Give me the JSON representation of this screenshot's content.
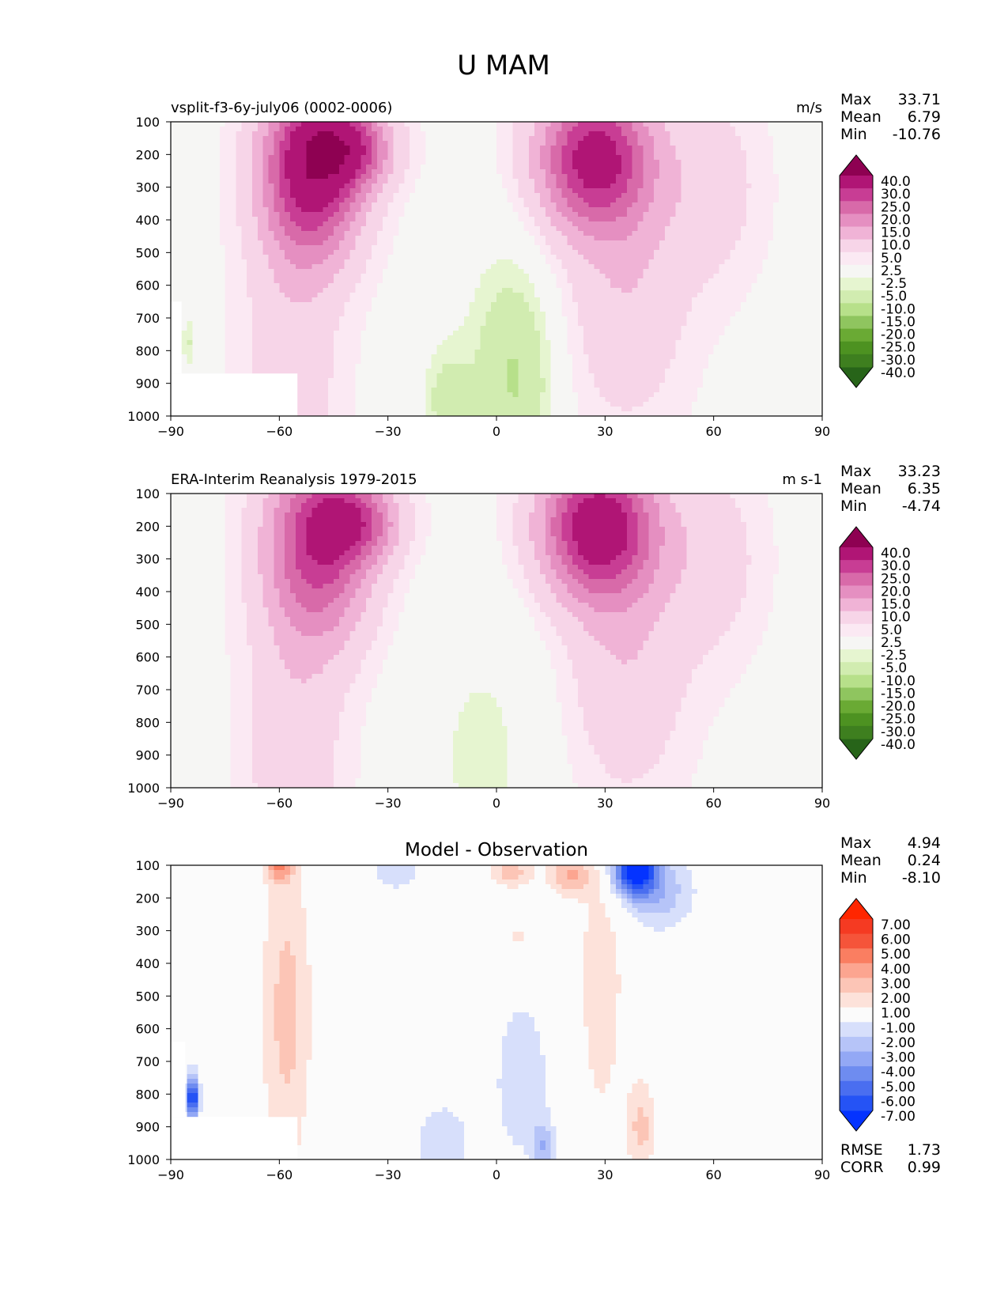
{
  "figure": {
    "title": "U MAM"
  },
  "colors": {
    "top_levels": [
      -40,
      -30,
      -25,
      -20,
      -15,
      -10,
      -5,
      -2.5,
      2.5,
      5,
      10,
      15,
      20,
      25,
      30,
      40
    ],
    "top_colorbar": [
      "#276419",
      "#3e7f1f",
      "#4d9221",
      "#6aaa34",
      "#8fc55f",
      "#b7e08a",
      "#d1ecb0",
      "#e6f5d0",
      "#f6f6f4",
      "#fbe9f3",
      "#f7d5e8",
      "#f0b3d6",
      "#e58fc1",
      "#d86aa9",
      "#c83d94",
      "#b01575",
      "#8e0152"
    ],
    "diff_levels": [
      -7,
      -6,
      -5,
      -4,
      -3,
      -2,
      -1,
      1,
      2,
      3,
      4,
      5,
      6,
      7
    ],
    "diff_colorbar": [
      "#0433ff",
      "#2553f5",
      "#4a6ef0",
      "#6e8cf0",
      "#93a8f5",
      "#b6c4f8",
      "#d7dffb",
      "#fbfbfb",
      "#fde2da",
      "#fcc5b6",
      "#fca590",
      "#fa7e61",
      "#f5543a",
      "#f53a22",
      "#ff2600"
    ]
  },
  "chart_data": [
    {
      "type": "heatmap",
      "subtitle_left": "vsplit-f3-6y-july06 (0002-0006)",
      "subtitle_right": "m/s",
      "stats": [
        {
          "label": "Max",
          "value": "33.71"
        },
        {
          "label": "Mean",
          "value": "6.79"
        },
        {
          "label": "Min",
          "value": "-10.76"
        }
      ],
      "x_ticks": [
        "−90",
        "−60",
        "−30",
        "0",
        "30",
        "60",
        "90"
      ],
      "y_ticks": [
        "100",
        "200",
        "300",
        "400",
        "500",
        "600",
        "700",
        "800",
        "900",
        "1000"
      ],
      "xlim": [
        -90,
        90
      ],
      "ylim": [
        1000,
        100
      ],
      "colorbar_labels": [
        "-40.0",
        "-30.0",
        "-25.0",
        "-20.0",
        "-15.0",
        "-10.0",
        "-5.0",
        "-2.5",
        "2.5",
        "5.0",
        "10.0",
        "15.0",
        "20.0",
        "25.0",
        "30.0",
        "40.0"
      ],
      "features": [
        {
          "lat": -51,
          "p": 240,
          "peak": 33.7,
          "wlat": 14,
          "wp": 280
        },
        {
          "lat": -40,
          "p": 180,
          "peak": 19,
          "wlat": 12,
          "wp": 120
        },
        {
          "lat": -57,
          "p": 900,
          "peak": 7,
          "wlat": 14,
          "wp": 500
        },
        {
          "lat": 27,
          "p": 210,
          "peak": 31,
          "wlat": 16,
          "wp": 220
        },
        {
          "lat": 36,
          "p": 620,
          "peak": 8,
          "wlat": 17,
          "wp": 420
        },
        {
          "lat": 60,
          "p": 300,
          "peak": 6,
          "wlat": 14,
          "wp": 300
        },
        {
          "lat": 6,
          "p": 900,
          "peak": -8.5,
          "wlat": 10,
          "wp": 320
        },
        {
          "lat": -14,
          "p": 960,
          "peak": -7,
          "wlat": 7,
          "wp": 180
        },
        {
          "lat": 0,
          "p": 800,
          "peak": -4,
          "wlat": 14,
          "wp": 400
        },
        {
          "lat": -85,
          "p": 780,
          "peak": -6.5,
          "wlat": 2,
          "wp": 90
        }
      ],
      "baseline": 1.2,
      "masks": [
        {
          "lat1": -90,
          "lat2": -55,
          "p1": 870,
          "p2": 1000
        },
        {
          "lat1": -90,
          "lat2": -87,
          "p1": 650,
          "p2": 870
        }
      ]
    },
    {
      "type": "heatmap",
      "subtitle_left": "ERA-Interim Reanalysis 1979-2015",
      "subtitle_right": "m s-1",
      "stats": [
        {
          "label": "Max",
          "value": "33.23"
        },
        {
          "label": "Mean",
          "value": "6.35"
        },
        {
          "label": "Min",
          "value": "-4.74"
        }
      ],
      "x_ticks": [
        "−90",
        "−60",
        "−30",
        "0",
        "30",
        "60",
        "90"
      ],
      "y_ticks": [
        "100",
        "200",
        "300",
        "400",
        "500",
        "600",
        "700",
        "800",
        "900",
        "1000"
      ],
      "xlim": [
        -90,
        90
      ],
      "ylim": [
        1000,
        100
      ],
      "colorbar_labels": [
        "-40.0",
        "-30.0",
        "-25.0",
        "-20.0",
        "-15.0",
        "-10.0",
        "-5.0",
        "-2.5",
        "2.5",
        "5.0",
        "10.0",
        "15.0",
        "20.0",
        "25.0",
        "30.0",
        "40.0"
      ],
      "features": [
        {
          "lat": -49,
          "p": 250,
          "peak": 26.5,
          "wlat": 15,
          "wp": 300
        },
        {
          "lat": -38,
          "p": 185,
          "peak": 16,
          "wlat": 12,
          "wp": 120
        },
        {
          "lat": -56,
          "p": 900,
          "peak": 7,
          "wlat": 14,
          "wp": 500
        },
        {
          "lat": 28,
          "p": 200,
          "peak": 33.2,
          "wlat": 16,
          "wp": 220
        },
        {
          "lat": 36,
          "p": 620,
          "peak": 8,
          "wlat": 17,
          "wp": 420
        },
        {
          "lat": 60,
          "p": 300,
          "peak": 6,
          "wlat": 14,
          "wp": 300
        },
        {
          "lat": -4,
          "p": 900,
          "peak": -4.5,
          "wlat": 18,
          "wp": 450
        }
      ],
      "baseline": 1.2,
      "masks": []
    },
    {
      "type": "heatmap",
      "title": "Model - Observation",
      "stats": [
        {
          "label": "Max",
          "value": "4.94"
        },
        {
          "label": "Mean",
          "value": "0.24"
        },
        {
          "label": "Min",
          "value": "-8.10"
        }
      ],
      "footer_stats": [
        {
          "label": "RMSE",
          "value": "1.73"
        },
        {
          "label": "CORR",
          "value": "0.99"
        }
      ],
      "x_ticks": [
        "−90",
        "−60",
        "−30",
        "0",
        "30",
        "60",
        "90"
      ],
      "y_ticks": [
        "100",
        "200",
        "300",
        "400",
        "500",
        "600",
        "700",
        "800",
        "900",
        "1000"
      ],
      "xlim": [
        -90,
        90
      ],
      "ylim": [
        1000,
        100
      ],
      "colorbar_labels": [
        "-7.00",
        "-6.00",
        "-5.00",
        "-4.00",
        "-3.00",
        "-2.00",
        "-1.00",
        "1.00",
        "2.00",
        "3.00",
        "4.00",
        "5.00",
        "6.00",
        "7.00"
      ],
      "features": [
        {
          "lat": -58,
          "p": 550,
          "peak": 2.4,
          "wlat": 7,
          "wp": 500
        },
        {
          "lat": -60,
          "p": 110,
          "peak": 3.2,
          "wlat": 4,
          "wp": 40
        },
        {
          "lat": 38,
          "p": 110,
          "peak": -8.1,
          "wlat": 6,
          "wp": 80
        },
        {
          "lat": 45,
          "p": 180,
          "peak": -2.6,
          "wlat": 10,
          "wp": 120
        },
        {
          "lat": 20,
          "p": 130,
          "peak": 3.0,
          "wlat": 6,
          "wp": 60
        },
        {
          "lat": 4,
          "p": 120,
          "peak": 2.5,
          "wlat": 6,
          "wp": 50
        },
        {
          "lat": 29,
          "p": 450,
          "peak": 1.6,
          "wlat": 7,
          "wp": 500
        },
        {
          "lat": 40,
          "p": 900,
          "peak": 2.3,
          "wlat": 4,
          "wp": 150
        },
        {
          "lat": 7,
          "p": 750,
          "peak": -1.6,
          "wlat": 9,
          "wp": 300
        },
        {
          "lat": 13,
          "p": 960,
          "peak": -2.4,
          "wlat": 3,
          "wp": 80
        },
        {
          "lat": -15,
          "p": 950,
          "peak": -1.6,
          "wlat": 9,
          "wp": 150
        },
        {
          "lat": -28,
          "p": 120,
          "peak": -1.8,
          "wlat": 7,
          "wp": 60
        },
        {
          "lat": -84,
          "p": 810,
          "peak": -7.5,
          "wlat": 1.8,
          "wp": 70
        },
        {
          "lat": 6,
          "p": 320,
          "peak": 1.5,
          "wlat": 2,
          "wp": 40
        }
      ],
      "baseline": 0,
      "masks": [
        {
          "lat1": -90,
          "lat2": -55,
          "p1": 870,
          "p2": 1000
        },
        {
          "lat1": -90,
          "lat2": -86,
          "p1": 640,
          "p2": 870
        }
      ]
    }
  ]
}
